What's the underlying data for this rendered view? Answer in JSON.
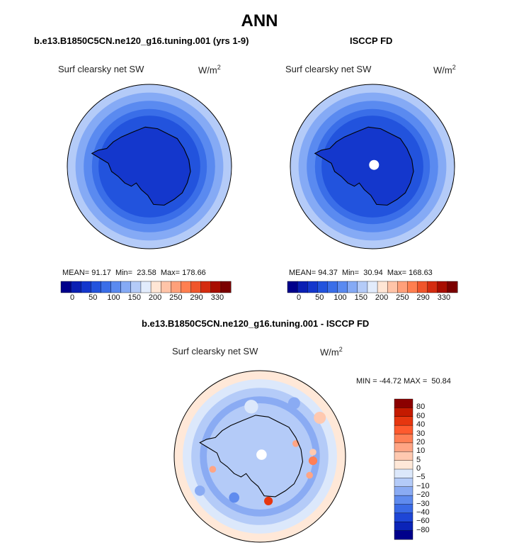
{
  "chart_data": [
    {
      "type": "heatmap",
      "title": "ANN",
      "case_title": "b.e13.B1850C5CN.ne120_g16.tuning.001 (yrs 1-9)",
      "variable": "Surf clearsky net SW",
      "units": "W/m",
      "units_sup": "2",
      "stats": {
        "mean_label": "MEAN=",
        "mean": "91.17",
        "min_label": "Min=",
        "min": "23.58",
        "max_label": "Max=",
        "max": "178.66"
      },
      "colorbar": {
        "levels": [
          "0",
          "50",
          "100",
          "150",
          "200",
          "250",
          "290",
          "330"
        ],
        "colors": [
          "#00008b",
          "#0a1fb3",
          "#1437cc",
          "#2253dd",
          "#3a6ee8",
          "#5a8af0",
          "#85aaf5",
          "#b4cbf8",
          "#e2ecfc",
          "#ffe6d5",
          "#ffc4a8",
          "#ffa07a",
          "#ff7f50",
          "#f0552b",
          "#d42c10",
          "#a80d00",
          "#7a0000"
        ]
      }
    },
    {
      "type": "heatmap",
      "case_title": "ISCCP FD",
      "variable": "Surf clearsky net SW",
      "units": "W/m",
      "units_sup": "2",
      "stats": {
        "mean_label": "MEAN=",
        "mean": "94.37",
        "min_label": "Min=",
        "min": "30.94",
        "max_label": "Max=",
        "max": "168.63"
      },
      "colorbar": {
        "levels": [
          "0",
          "50",
          "100",
          "150",
          "200",
          "250",
          "290",
          "330"
        ]
      }
    },
    {
      "type": "heatmap",
      "case_title": "b.e13.B1850C5CN.ne120_g16.tuning.001 - ISCCP FD",
      "variable": "Surf clearsky net SW",
      "units": "W/m",
      "units_sup": "2",
      "stats_text": "MIN = -44.72 MAX =  50.84",
      "colorbar": {
        "levels": [
          "80",
          "60",
          "40",
          "30",
          "20",
          "10",
          "5",
          "0",
          "−5",
          "−10",
          "−20",
          "−30",
          "−40",
          "−60",
          "−80"
        ],
        "colors": [
          "#8b0000",
          "#c41a00",
          "#e6360f",
          "#ff5a2e",
          "#ff7f55",
          "#ffa585",
          "#ffc9b0",
          "#ffe8d8",
          "#dce8fb",
          "#b4cbf8",
          "#8aabf3",
          "#5f8bee",
          "#3a6ae6",
          "#1e46d6",
          "#0b24b8",
          "#00008b"
        ]
      }
    }
  ]
}
